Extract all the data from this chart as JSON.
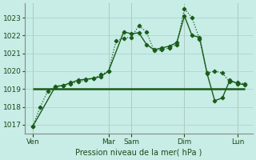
{
  "bg_color": "#c8ece6",
  "grid_color": "#a8d8cc",
  "line_color": "#1a5c1a",
  "title": "Pression niveau de la mer( hPa )",
  "ylim": [
    1016.5,
    1023.8
  ],
  "yticks": [
    1017,
    1018,
    1019,
    1020,
    1021,
    1022,
    1023
  ],
  "xtick_labels": [
    "Ven",
    "Mar",
    "Sam",
    "Dim",
    "Lun"
  ],
  "xtick_positions": [
    0,
    10,
    13,
    20,
    27
  ],
  "xlim": [
    -1,
    29
  ],
  "vline_positions": [
    0,
    10,
    13,
    20,
    27
  ],
  "line1_x": [
    0,
    1,
    2,
    3,
    4,
    5,
    6,
    7,
    8,
    9,
    10,
    11,
    12,
    13,
    14,
    15,
    16,
    17,
    18,
    19,
    20,
    21,
    22,
    23,
    24,
    25,
    26,
    27,
    28
  ],
  "line1_y": [
    1016.9,
    1018.0,
    1018.9,
    1019.1,
    1019.2,
    1019.3,
    1019.4,
    1019.5,
    1019.6,
    1019.8,
    1020.0,
    1021.7,
    1021.85,
    1021.9,
    1022.55,
    1022.2,
    1021.15,
    1021.2,
    1021.3,
    1021.5,
    1023.5,
    1023.0,
    1021.8,
    1019.9,
    1020.0,
    1019.9,
    1019.4,
    1019.35,
    1019.3
  ],
  "line2_x": [
    0,
    3,
    4,
    5,
    6,
    7,
    8,
    9,
    10,
    12,
    13,
    14,
    15,
    16,
    17,
    18,
    19,
    20,
    21,
    22,
    23,
    24,
    25,
    26,
    27,
    28
  ],
  "line2_y": [
    1016.9,
    1019.15,
    1019.2,
    1019.35,
    1019.5,
    1019.55,
    1019.6,
    1019.7,
    1020.0,
    1022.2,
    1022.1,
    1022.15,
    1021.5,
    1021.2,
    1021.3,
    1021.4,
    1021.6,
    1023.1,
    1022.0,
    1021.9,
    1019.85,
    1018.35,
    1018.5,
    1019.5,
    1019.3,
    1019.25
  ],
  "hline_y": 1019.0,
  "hline_xstart": 0,
  "hline_xend": 28
}
